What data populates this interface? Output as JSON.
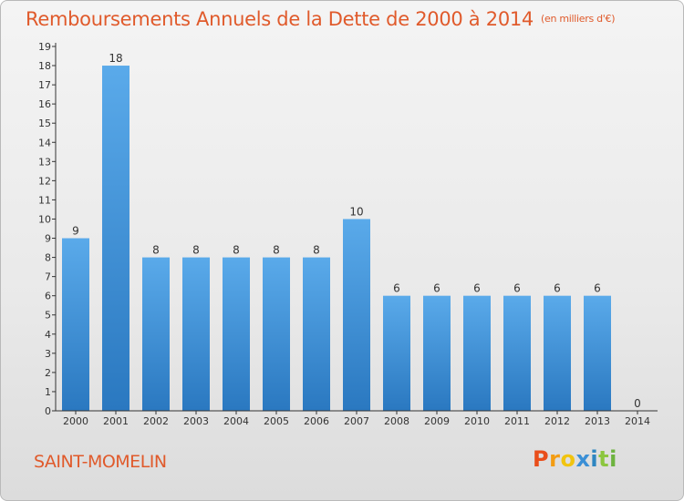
{
  "title": {
    "main": "Remboursements Annuels de la Dette de 2000 à 2014",
    "unit": "(en milliers d'€)"
  },
  "city": "SAINT-MOMELIN",
  "brand": {
    "letters": [
      "P",
      "r",
      "o",
      "x",
      "i",
      "t",
      "i"
    ],
    "colors": [
      "#e94e1b",
      "#f39c12",
      "#f1c40f",
      "#3a8fd6",
      "#2e86c1",
      "#8cc63f",
      "#6db33f"
    ]
  },
  "colors": {
    "bar_top": "#5aaaea",
    "bar_bottom": "#2a78c0",
    "axis": "#333333",
    "accent": "#e05a2b"
  },
  "chart_data": {
    "type": "bar",
    "title": "Remboursements Annuels de la Dette de 2000 à 2014",
    "subtitle": "(en milliers d'€)",
    "categories": [
      "2000",
      "2001",
      "2002",
      "2003",
      "2004",
      "2005",
      "2006",
      "2007",
      "2008",
      "2009",
      "2010",
      "2011",
      "2012",
      "2013",
      "2014"
    ],
    "values": [
      9,
      18,
      8,
      8,
      8,
      8,
      8,
      10,
      6,
      6,
      6,
      6,
      6,
      6,
      0
    ],
    "data_labels": [
      "9",
      "18",
      "8",
      "8",
      "8",
      "8",
      "8",
      "10",
      "6",
      "6",
      "6",
      "6",
      "6",
      "6",
      "0"
    ],
    "yticks": [
      "0",
      "1",
      "2",
      "3",
      "4",
      "5",
      "6",
      "7",
      "8",
      "9",
      "10",
      "11",
      "12",
      "13",
      "14",
      "15",
      "16",
      "17",
      "18",
      "19"
    ],
    "ylim": [
      0,
      19
    ],
    "xlabel": "",
    "ylabel": "",
    "grid": false,
    "legend": "none"
  }
}
